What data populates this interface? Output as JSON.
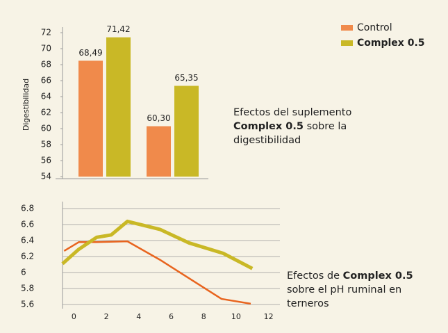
{
  "chart_data": [
    {
      "type": "bar",
      "ylabel": "Digestibilidad",
      "categories": [
        null,
        null
      ],
      "series": [
        {
          "name": "Control",
          "color": "#f08a4b",
          "values": [
            68.49,
            60.3
          ],
          "value_labels": [
            "68,49",
            "60,30"
          ]
        },
        {
          "name": "Complex 0.5",
          "color": "#c9b826",
          "values": [
            71.42,
            65.35
          ],
          "value_labels": [
            "71,42",
            "65,35"
          ]
        }
      ],
      "ylim": [
        54,
        72
      ],
      "yticks": [
        54,
        56,
        58,
        60,
        62,
        64,
        66,
        68,
        70,
        72
      ],
      "legend": "upper right",
      "annotation": [
        "Efectos del suplemento ",
        "Complex 0.5",
        " sobre la digestibilidad"
      ]
    },
    {
      "type": "line",
      "series": [
        {
          "name": "Control",
          "color": "#e8641e",
          "x": [
            -0.6,
            0.3,
            1.4,
            3.3,
            5.3,
            9.1,
            10.9
          ],
          "values": [
            6.27,
            6.38,
            6.38,
            6.39,
            6.16,
            5.67,
            5.61
          ]
        },
        {
          "name": "Complex 0.5",
          "color": "#c9b826",
          "x": [
            -0.7,
            0.3,
            1.4,
            2.3,
            3.3,
            5.3,
            7.1,
            9.2,
            11
          ],
          "values": [
            6.11,
            6.29,
            6.44,
            6.47,
            6.64,
            6.54,
            6.37,
            6.24,
            6.05
          ]
        }
      ],
      "xlim": [
        -0.7,
        12.7
      ],
      "xticks": [
        0,
        2,
        4,
        6,
        8,
        10,
        12
      ],
      "ylim": [
        5.6,
        6.8
      ],
      "yticks": [
        5.6,
        5.8,
        6,
        6.2,
        6.4,
        6.6,
        6.8
      ],
      "grid": true,
      "annotation": [
        "Efectos de ",
        "Complex 0.5",
        " sobre el pH ruminal en terneros"
      ]
    }
  ]
}
